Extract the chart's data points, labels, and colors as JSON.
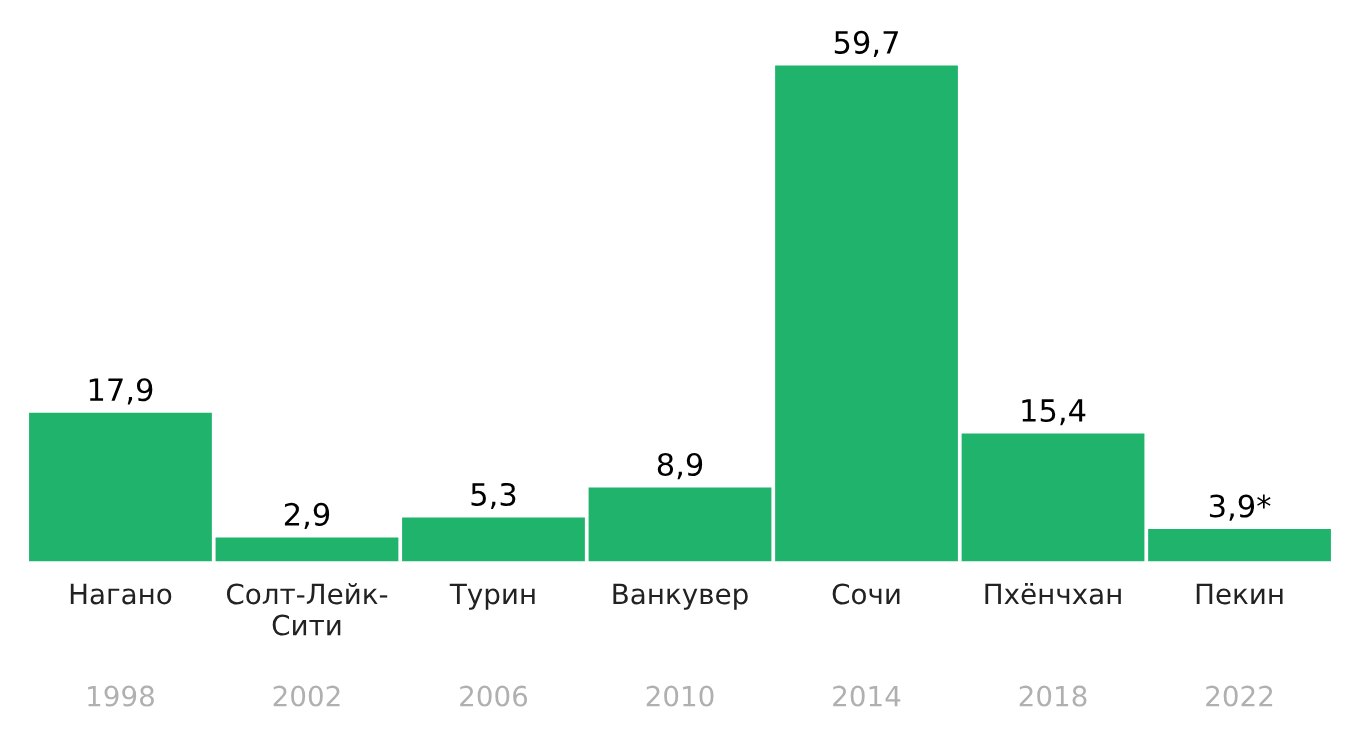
{
  "chart_data": {
    "type": "bar",
    "categories": [
      "Нагано\n1998",
      "Солт-Лейк-\nСити\n2002",
      "Турин\n2006",
      "Ванкувер\n2010",
      "Сочи\n2014",
      "Пхёнчхан\n2018",
      "Пекин\n2022"
    ],
    "values": [
      17.9,
      2.9,
      5.3,
      8.9,
      59.7,
      15.4,
      3.9
    ],
    "value_labels": [
      "17,9",
      "2,9",
      "5,3",
      "8,9",
      "59,7",
      "15,4",
      "3,9*"
    ],
    "color": "#1fb36c"
  }
}
